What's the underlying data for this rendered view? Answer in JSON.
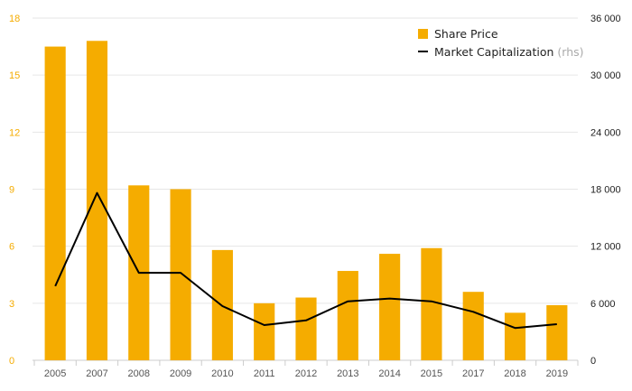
{
  "chart_data": {
    "type": "bar",
    "categories": [
      "2005",
      "2007",
      "2008",
      "2009",
      "2010",
      "2011",
      "2012",
      "2013",
      "2014",
      "2015",
      "2017",
      "2018",
      "2019"
    ],
    "series": [
      {
        "name": "Share Price",
        "type": "bar",
        "axis": "left",
        "color": "#f5ac00",
        "values": [
          16.5,
          16.8,
          9.2,
          9.0,
          5.8,
          3.0,
          3.3,
          4.7,
          5.6,
          5.9,
          3.6,
          2.5,
          2.9
        ]
      },
      {
        "name": "Market Capitalization",
        "type": "line",
        "axis": "right",
        "color": "#000000",
        "values": [
          7800,
          17600,
          9200,
          9200,
          5700,
          3700,
          4200,
          6200,
          6500,
          6200,
          5100,
          3400,
          3800
        ]
      }
    ],
    "ylim": [
      0,
      18
    ],
    "y_ticks": [
      0,
      3,
      6,
      9,
      12,
      15,
      18
    ],
    "y_tick_labels": [
      "0",
      "3",
      "6",
      "9",
      "12",
      "15",
      "18"
    ],
    "y2lim": [
      0,
      36000
    ],
    "y2_ticks": [
      0,
      6000,
      12000,
      18000,
      24000,
      30000,
      36000
    ],
    "y2_tick_labels": [
      "0",
      "6 000",
      "12 000",
      "18 000",
      "24 000",
      "30 000",
      "36 000"
    ],
    "grid": true,
    "legend_position": "top-right",
    "title": "",
    "xlabel": "",
    "ylabel": ""
  },
  "legend": {
    "bar_label": "Share Price",
    "line_label": "Market Capitalization",
    "line_suffix": "(rhs)"
  },
  "colors": {
    "left_axis_text": "#f5ac00",
    "right_axis_text": "#222222",
    "grid": "#e6e6e6",
    "x_text": "#555555"
  }
}
